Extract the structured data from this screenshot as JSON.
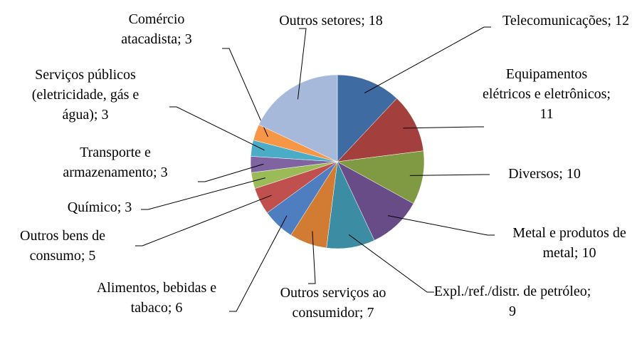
{
  "chart_data": {
    "type": "pie",
    "values": [
      12,
      11,
      10,
      10,
      9,
      7,
      6,
      5,
      3,
      3,
      3,
      3,
      18
    ],
    "value_labels": [
      "Telecomunicações; 12",
      "Equipamentos elétricos e eletrônicos; 11",
      "Diversos; 10",
      "Metal e produtos de metal; 10",
      "Expl./ref./distr. de petróleo; 9",
      "Outros serviços ao consumidor; 7",
      "Alimentos, bebidas e tabaco; 6",
      "Outros bens de consumo; 5",
      "Químico; 3",
      "Transporte e armazenamento; 3",
      "Serviços públicos (eletricidade, gás e água); 3",
      "Comércio atacadista; 3",
      "Outros setores; 18"
    ],
    "colors": [
      "#3E6BA1",
      "#A3403D",
      "#7F9A43",
      "#684C87",
      "#3C8DA3",
      "#D27C33",
      "#4E7EC0",
      "#C0504D",
      "#9BBB59",
      "#8064A2",
      "#4BACC6",
      "#F79646",
      "#A7B9DB"
    ]
  }
}
